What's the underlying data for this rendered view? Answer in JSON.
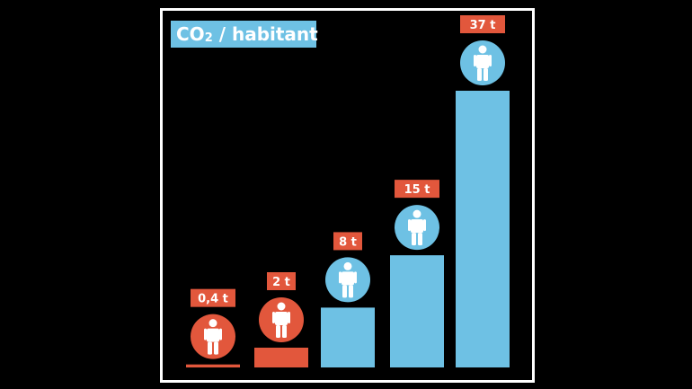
{
  "title_main": "CO",
  "title_sub": "2",
  "title_rest": " / habitant",
  "colors": {
    "bar_low": "#e2573c",
    "bar_high": "#6ec1e4",
    "label_bg": "#e2573c",
    "text": "#ffffff",
    "frame": "#ffffff",
    "background": "#000000"
  },
  "chart_data": {
    "type": "bar",
    "title": "CO₂ / habitant",
    "categories": [
      "",
      "",
      "",
      "",
      ""
    ],
    "series": [
      {
        "values": [
          0.4,
          2,
          8,
          15,
          37
        ],
        "labels": [
          "0,4 t",
          "2 t",
          "8 t",
          "15 t",
          "37 t"
        ],
        "icons": [
          "person-flag-icon",
          "person-flag-icon",
          "person-flag-icon",
          "person-flag-icon",
          "person-flag-icon"
        ],
        "colors": [
          "#e2573c",
          "#e2573c",
          "#6ec1e4",
          "#6ec1e4",
          "#6ec1e4"
        ],
        "circle_colors": [
          "#e2573c",
          "#e2573c",
          "#6ec1e4",
          "#6ec1e4",
          "#6ec1e4"
        ]
      }
    ],
    "ylim": [
      0,
      37
    ],
    "grid": false,
    "legend": "none"
  }
}
